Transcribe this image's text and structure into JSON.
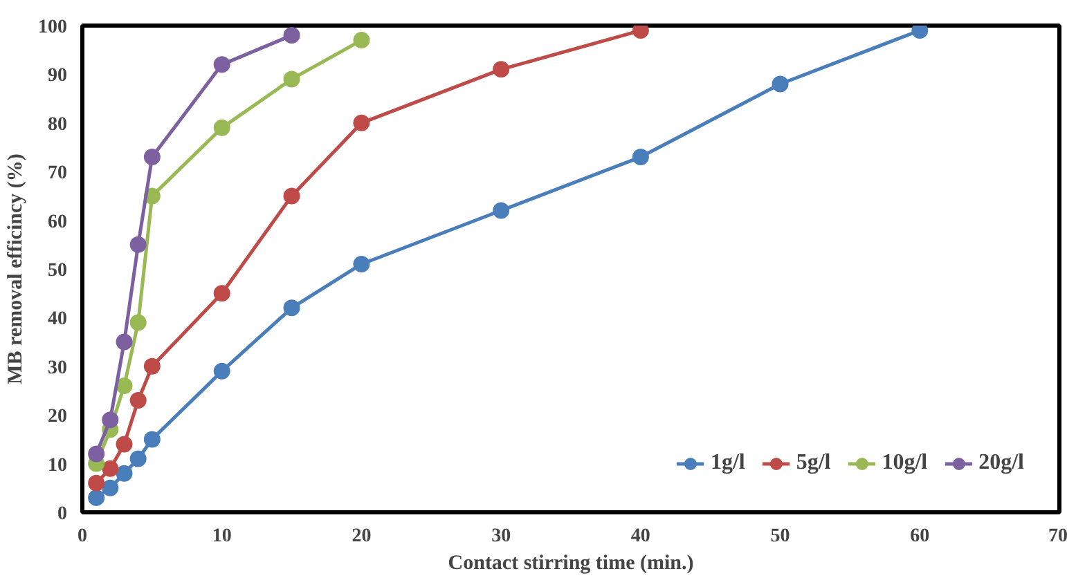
{
  "chart_data": {
    "type": "line",
    "xlabel": "Contact stirring time (min.)",
    "ylabel": "MB removal efficincy (%)",
    "xlim": [
      0,
      70
    ],
    "xticks": [
      0,
      10,
      20,
      30,
      40,
      50,
      60,
      70
    ],
    "ylim": [
      0,
      100
    ],
    "yticks": [
      0,
      10,
      20,
      30,
      40,
      50,
      60,
      70,
      80,
      90,
      100
    ],
    "grid": false,
    "legend": "bottom right",
    "marker": "circle",
    "line_style": "solid",
    "series": [
      {
        "name": "1g/l",
        "color": "#4a7ebb",
        "x": [
          1,
          2,
          3,
          4,
          5,
          10,
          15,
          20,
          30,
          40,
          50,
          60
        ],
        "values": [
          3,
          5,
          8,
          11,
          15,
          29,
          42,
          51,
          62,
          73,
          88,
          99
        ]
      },
      {
        "name": "5g/l",
        "color": "#be4b48",
        "x": [
          1,
          2,
          3,
          4,
          5,
          10,
          15,
          20,
          30,
          40
        ],
        "values": [
          6,
          9,
          14,
          23,
          30,
          45,
          65,
          80,
          91,
          99
        ]
      },
      {
        "name": "10g/l",
        "color": "#98b954",
        "x": [
          1,
          2,
          3,
          4,
          5,
          10,
          15,
          20
        ],
        "values": [
          10,
          17,
          26,
          39,
          65,
          79,
          89,
          97
        ]
      },
      {
        "name": "20g/l",
        "color": "#7d60a0",
        "x": [
          1,
          2,
          3,
          4,
          5,
          10,
          15
        ],
        "values": [
          12,
          19,
          35,
          55,
          73,
          92,
          98
        ]
      }
    ]
  }
}
